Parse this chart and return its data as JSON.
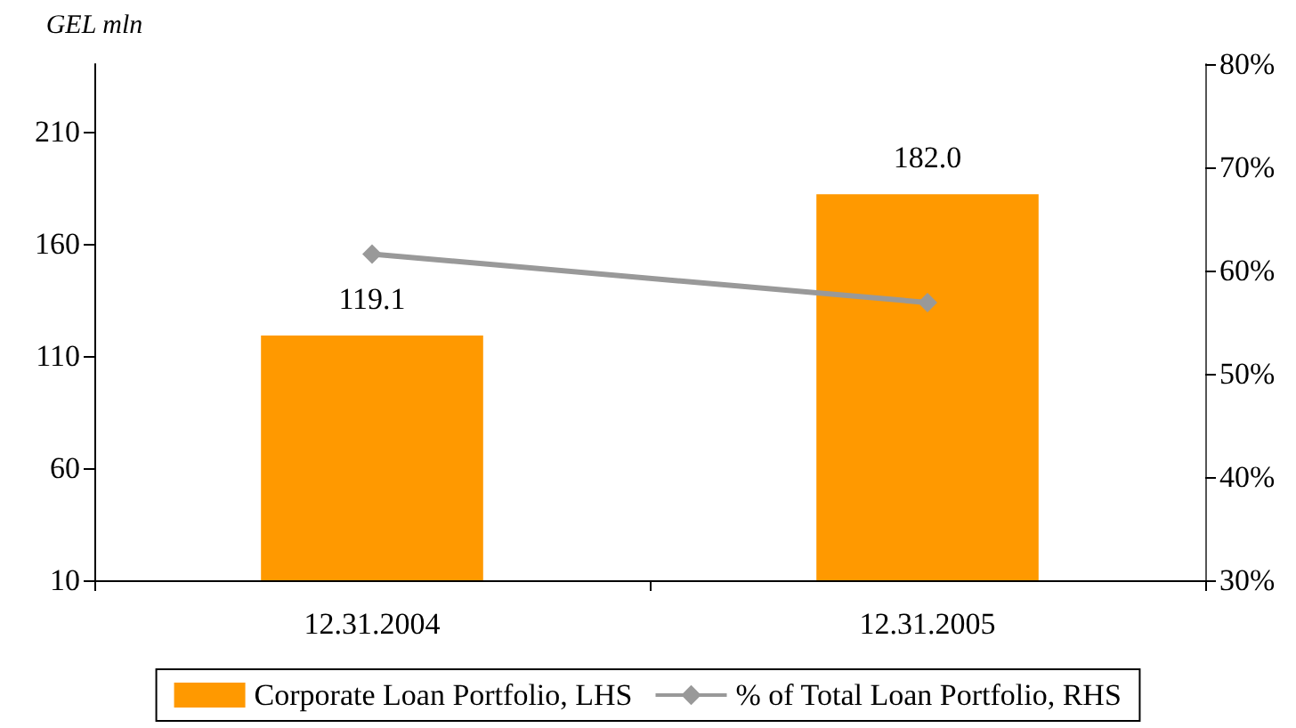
{
  "chart_data": {
    "type": "bar",
    "ylabel": "GEL mln",
    "categories": [
      "12.31.2004",
      "12.31.2005"
    ],
    "series": [
      {
        "name": "Corporate Loan Portfolio, LHS",
        "color": "#ff9900",
        "values": [
          119.1,
          182.0
        ],
        "value_labels": [
          "119.1",
          "182.0"
        ]
      },
      {
        "name": "% of Total Loan Portfolio, RHS",
        "type": "line",
        "axis": "y2",
        "color": "#999999",
        "values": [
          61.6,
          56.9
        ]
      }
    ],
    "ylim": [
      10,
      240
    ],
    "yticks": [
      10,
      60,
      110,
      160,
      210
    ],
    "y2lim": [
      30,
      80
    ],
    "y2ticks": [
      {
        "value": 30,
        "label": "30%"
      },
      {
        "value": 40,
        "label": "40%"
      },
      {
        "value": 50,
        "label": "50%"
      },
      {
        "value": 60,
        "label": "60%"
      },
      {
        "value": 70,
        "label": "70%"
      },
      {
        "value": 80,
        "label": "80%"
      }
    ],
    "marker": "diamond",
    "grid": false,
    "legend": "bottom"
  }
}
